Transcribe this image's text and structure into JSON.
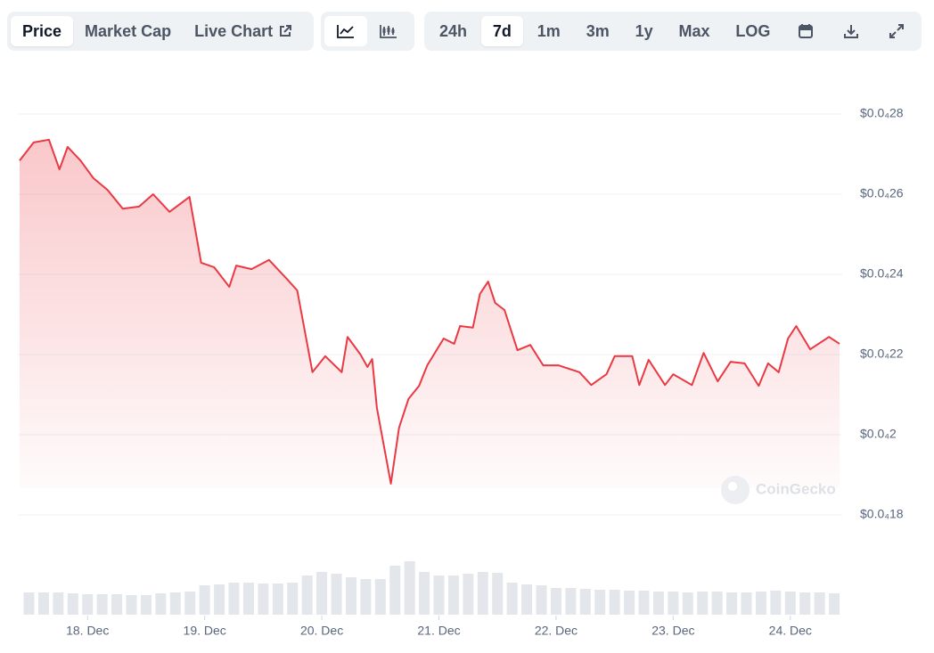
{
  "toolbar": {
    "tabs": [
      "Price",
      "Market Cap",
      "Live Chart"
    ],
    "ranges": [
      "24h",
      "7d",
      "1m",
      "3m",
      "1y",
      "Max",
      "LOG"
    ]
  },
  "watermark": "CoinGecko",
  "chart_data": [
    {
      "type": "line",
      "x": [
        17.42,
        17.54,
        17.67,
        17.76,
        17.83,
        17.94,
        18.05,
        18.17,
        18.3,
        18.44,
        18.56,
        18.7,
        18.87,
        18.97,
        19.08,
        19.21,
        19.27,
        19.4,
        19.55,
        19.7,
        19.79,
        19.92,
        20.03,
        20.17,
        20.22,
        20.33,
        20.39,
        20.43,
        20.47,
        20.59,
        20.66,
        20.74,
        20.83,
        20.9,
        21.04,
        21.13,
        21.18,
        21.29,
        21.35,
        21.42,
        21.48,
        21.56,
        21.67,
        21.78,
        21.89,
        22.02,
        22.2,
        22.3,
        22.43,
        22.5,
        22.65,
        22.71,
        22.79,
        22.93,
        23.0,
        23.16,
        23.26,
        23.38,
        23.49,
        23.61,
        23.73,
        23.81,
        23.9,
        23.98,
        24.05,
        24.17,
        24.33,
        24.42
      ],
      "series": [
        {
          "color": "#ea3943",
          "values": [
            2.684e-05,
            2.729e-05,
            2.736e-05,
            2.662e-05,
            2.718e-05,
            2.684e-05,
            2.64e-05,
            2.611e-05,
            2.564e-05,
            2.569e-05,
            2.6e-05,
            2.556e-05,
            2.593e-05,
            2.429e-05,
            2.418e-05,
            2.369e-05,
            2.422e-05,
            2.413e-05,
            2.436e-05,
            2.389e-05,
            2.36e-05,
            2.156e-05,
            2.196e-05,
            2.156e-05,
            2.244e-05,
            2.2e-05,
            2.169e-05,
            2.189e-05,
            2.067e-05,
            1.878e-05,
            2.018e-05,
            2.089e-05,
            2.122e-05,
            2.173e-05,
            2.24e-05,
            2.227e-05,
            2.271e-05,
            2.267e-05,
            2.351e-05,
            2.382e-05,
            2.329e-05,
            2.311e-05,
            2.211e-05,
            2.224e-05,
            2.173e-05,
            2.173e-05,
            2.156e-05,
            2.124e-05,
            2.151e-05,
            2.196e-05,
            2.196e-05,
            2.124e-05,
            2.187e-05,
            2.124e-05,
            2.151e-05,
            2.124e-05,
            2.204e-05,
            2.133e-05,
            2.182e-05,
            2.178e-05,
            2.122e-05,
            2.178e-05,
            2.156e-05,
            2.24e-05,
            2.271e-05,
            2.213e-05,
            2.244e-05,
            2.227e-05
          ]
        }
      ],
      "xlim": [
        17.42,
        24.42
      ],
      "xticks": [
        {
          "value": 18,
          "label": "18. Dec"
        },
        {
          "value": 19,
          "label": "19. Dec"
        },
        {
          "value": 20,
          "label": "20. Dec"
        },
        {
          "value": 21,
          "label": "21. Dec"
        },
        {
          "value": 22,
          "label": "22. Dec"
        },
        {
          "value": 23,
          "label": "23. Dec"
        },
        {
          "value": 24,
          "label": "24. Dec"
        }
      ],
      "ylim": [
        1.8e-05,
        2.8e-05
      ],
      "yticks": [
        {
          "value": 1.8e-05,
          "label": "$0.0₄18"
        },
        {
          "value": 2e-05,
          "label": "$0.0₄2"
        },
        {
          "value": 2.2e-05,
          "label": "$0.0₄22"
        },
        {
          "value": 2.4e-05,
          "label": "$0.0₄24"
        },
        {
          "value": 2.6e-05,
          "label": "$0.0₄26"
        },
        {
          "value": 2.8e-05,
          "label": "$0.0₄28"
        }
      ],
      "grid": true
    },
    {
      "type": "bar",
      "x": [
        17.5,
        17.625,
        17.75,
        17.875,
        18,
        18.125,
        18.25,
        18.375,
        18.5,
        18.625,
        18.75,
        18.875,
        19,
        19.125,
        19.25,
        19.375,
        19.5,
        19.625,
        19.75,
        19.875,
        20,
        20.125,
        20.25,
        20.375,
        20.5,
        20.625,
        20.75,
        20.875,
        21,
        21.125,
        21.25,
        21.375,
        21.5,
        21.625,
        21.75,
        21.875,
        22,
        22.125,
        22.25,
        22.375,
        22.5,
        22.625,
        22.75,
        22.875,
        23,
        23.125,
        23.25,
        23.375,
        23.5,
        23.625,
        23.75,
        23.875,
        24,
        24.125,
        24.25,
        24.375
      ],
      "values": [
        25,
        25,
        25,
        24,
        23,
        23,
        23,
        22,
        22,
        24,
        25,
        26,
        33,
        34,
        36,
        36,
        35,
        35,
        36,
        44,
        48,
        46,
        42,
        40,
        40,
        55,
        60,
        48,
        44,
        44,
        46,
        48,
        47,
        36,
        34,
        33,
        30,
        30,
        29,
        28,
        28,
        27,
        27,
        26,
        26,
        25,
        26,
        26,
        25,
        25,
        26,
        27,
        26,
        25,
        25,
        24
      ],
      "color": "#e3e6eb",
      "ylim": [
        0,
        100
      ]
    }
  ]
}
